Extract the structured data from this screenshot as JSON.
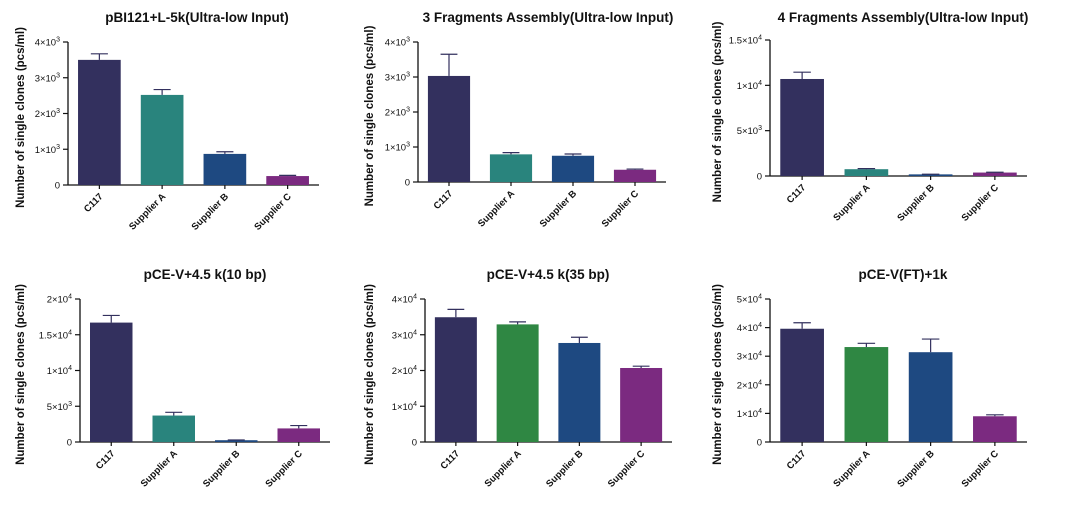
{
  "colors": {
    "C117": "#33305e",
    "teal": "#29847d",
    "green": "#2f8743",
    "blue": "#1e4981",
    "purple": "#7b2a80",
    "error": "#33305e"
  },
  "chart_data": [
    {
      "type": "bar",
      "title": "pBI121+L-5k(Ultra-low Input)",
      "ylabel": "Number of single clones (pcs/ml)",
      "categories": [
        "C117",
        "Supplier A",
        "Supplier B",
        "Supplier C"
      ],
      "values": [
        3500,
        2520,
        870,
        250
      ],
      "errors": [
        170,
        150,
        60,
        20
      ],
      "bar_colors": [
        "#33305e",
        "#29847d",
        "#1e4981",
        "#7b2a80"
      ],
      "ylim": [
        0,
        4000
      ],
      "yticks": [
        {
          "v": 0,
          "base": "0",
          "sup": ""
        },
        {
          "v": 1000,
          "base": "1×10",
          "sup": "3"
        },
        {
          "v": 2000,
          "base": "2×10",
          "sup": "3"
        },
        {
          "v": 3000,
          "base": "3×10",
          "sup": "3"
        },
        {
          "v": 4000,
          "base": "4×10",
          "sup": "3"
        }
      ],
      "grid": false
    },
    {
      "type": "bar",
      "title": "3 Fragments Assembly(Ultra-low Input)",
      "ylabel": "Number of single clones (pcs/ml)",
      "categories": [
        "C117",
        "Supplier A",
        "Supplier B",
        "Supplier C"
      ],
      "values": [
        3030,
        790,
        750,
        350
      ],
      "errors": [
        620,
        50,
        50,
        20
      ],
      "bar_colors": [
        "#33305e",
        "#29847d",
        "#1e4981",
        "#7b2a80"
      ],
      "ylim": [
        0,
        4000
      ],
      "yticks": [
        {
          "v": 0,
          "base": "0",
          "sup": ""
        },
        {
          "v": 1000,
          "base": "1×10",
          "sup": "3"
        },
        {
          "v": 2000,
          "base": "2×10",
          "sup": "3"
        },
        {
          "v": 3000,
          "base": "3×10",
          "sup": "3"
        },
        {
          "v": 4000,
          "base": "4×10",
          "sup": "3"
        }
      ],
      "grid": false
    },
    {
      "type": "bar",
      "title": "4 Fragments Assembly(Ultra-low Input)",
      "ylabel": "Number of single clones (pcs/ml)",
      "categories": [
        "C117",
        "Supplier A",
        "Supplier B",
        "Supplier C"
      ],
      "values": [
        10700,
        750,
        180,
        380
      ],
      "errors": [
        750,
        60,
        20,
        30
      ],
      "bar_colors": [
        "#33305e",
        "#29847d",
        "#1e4981",
        "#7b2a80"
      ],
      "ylim": [
        0,
        15000
      ],
      "yticks": [
        {
          "v": 0,
          "base": "0",
          "sup": ""
        },
        {
          "v": 5000,
          "base": "5×10",
          "sup": "3"
        },
        {
          "v": 10000,
          "base": "1×10",
          "sup": "4"
        },
        {
          "v": 15000,
          "base": "1.5×10",
          "sup": "4"
        }
      ],
      "grid": false
    },
    {
      "type": "bar",
      "title": "pCE-V+4.5 k(10 bp)",
      "ylabel": "Number of single clones (pcs/ml)",
      "categories": [
        "C117",
        "Supplier A",
        "Supplier B",
        "Supplier C"
      ],
      "values": [
        16700,
        3700,
        250,
        1900
      ],
      "errors": [
        1000,
        450,
        40,
        400
      ],
      "bar_colors": [
        "#33305e",
        "#29847d",
        "#1e4981",
        "#7b2a80"
      ],
      "ylim": [
        0,
        20000
      ],
      "yticks": [
        {
          "v": 0,
          "base": "0",
          "sup": ""
        },
        {
          "v": 5000,
          "base": "5×10",
          "sup": "3"
        },
        {
          "v": 10000,
          "base": "1×10",
          "sup": "4"
        },
        {
          "v": 15000,
          "base": "1.5×10",
          "sup": "4"
        },
        {
          "v": 20000,
          "base": "2×10",
          "sup": "4"
        }
      ],
      "grid": false
    },
    {
      "type": "bar",
      "title": "pCE-V+4.5 k(35 bp)",
      "ylabel": "Number of single clones (pcs/ml)",
      "categories": [
        "C117",
        "Supplier A",
        "Supplier B",
        "Supplier C"
      ],
      "values": [
        34900,
        32900,
        27700,
        20700
      ],
      "errors": [
        2200,
        700,
        1600,
        500
      ],
      "bar_colors": [
        "#33305e",
        "#2f8743",
        "#1e4981",
        "#7b2a80"
      ],
      "ylim": [
        0,
        40000
      ],
      "yticks": [
        {
          "v": 0,
          "base": "0",
          "sup": ""
        },
        {
          "v": 10000,
          "base": "1×10",
          "sup": "4"
        },
        {
          "v": 20000,
          "base": "2×10",
          "sup": "4"
        },
        {
          "v": 30000,
          "base": "3×10",
          "sup": "4"
        },
        {
          "v": 40000,
          "base": "4×10",
          "sup": "4"
        }
      ],
      "grid": false
    },
    {
      "type": "bar",
      "title": "pCE-V(FT)+1k",
      "ylabel": "Number of single clones (pcs/ml)",
      "categories": [
        "C117",
        "Supplier A",
        "Supplier B",
        "Supplier C"
      ],
      "values": [
        39600,
        33200,
        31400,
        9000
      ],
      "errors": [
        2100,
        1300,
        4600,
        500
      ],
      "bar_colors": [
        "#33305e",
        "#2f8743",
        "#1e4981",
        "#7b2a80"
      ],
      "ylim": [
        0,
        50000
      ],
      "yticks": [
        {
          "v": 0,
          "base": "0",
          "sup": ""
        },
        {
          "v": 10000,
          "base": "1×10",
          "sup": "4"
        },
        {
          "v": 20000,
          "base": "2×10",
          "sup": "4"
        },
        {
          "v": 30000,
          "base": "3×10",
          "sup": "4"
        },
        {
          "v": 40000,
          "base": "4×10",
          "sup": "4"
        },
        {
          "v": 50000,
          "base": "5×10",
          "sup": "4"
        }
      ],
      "grid": false
    }
  ]
}
